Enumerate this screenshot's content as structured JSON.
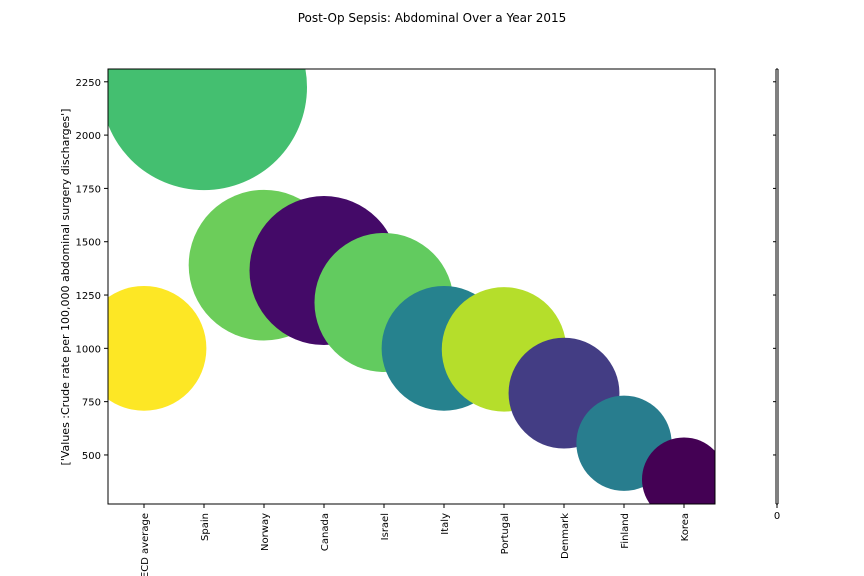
{
  "chart_data": {
    "type": "scatter",
    "title": "Post-Op Sepsis: Abdominal Over a Year 2015",
    "xlabel": "",
    "ylabel": "['Values :Crude rate per 100,000 abdominal surgery discharges']",
    "ylim": [
      270,
      2310
    ],
    "yticks": [
      500,
      750,
      1000,
      1250,
      1500,
      1750,
      2000,
      2250
    ],
    "grid": false,
    "categories": [
      "OECD average",
      "Spain",
      "Norway",
      "Canada",
      "Israel",
      "Italy",
      "Portugal",
      "Denmark",
      "Finland",
      "Korea"
    ],
    "values": [
      1000,
      2225,
      1390,
      1365,
      1215,
      1000,
      995,
      790,
      555,
      385
    ],
    "colors": [
      "#fde725",
      "#44bf70",
      "#6ccd5a",
      "#440a68",
      "#62cb5f",
      "#26828e",
      "#b5de2b",
      "#433d84",
      "#287d8e",
      "#440154"
    ],
    "colorbar_tick": "0"
  }
}
